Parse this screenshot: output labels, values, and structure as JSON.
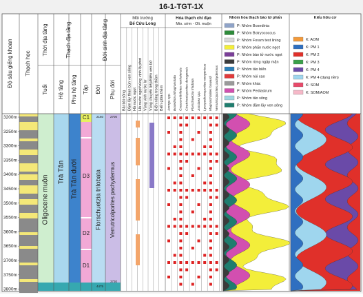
{
  "title": "16-1-TGT-1X",
  "columns": {
    "depth": "Độ sâu giếng khoan",
    "lithology": "Thạch học",
    "chrono": "Thời địa tầng",
    "age": "Tuổi",
    "litho": "Thạch địa tầng",
    "formation": "Hệ tầng",
    "subformation": "Phụ hệ tầng",
    "set": "Tập",
    "bio": "Đới sinh địa tầng",
    "zone": "Đới",
    "subzone": "Phụ đới"
  },
  "environment": {
    "title": "Môi trường",
    "basin": "Bể Cửu Long",
    "labels": [
      "Bãi bồi sông",
      "Đầm lầy than bùn ven sông",
      "Hồ nước ngọt",
      "Hồ nước ngọt/vùng vịnh lộ phơi",
      "Vùng vịnh nước lợ",
      "Vùng chuyển tiếp/Biển ven bờ",
      "Biển nông trong thềm",
      "Biển giữa thềm"
    ]
  },
  "fossils": {
    "title": "Hóa thạch chỉ đạo",
    "period": "Mio. sớm - Oli. muộn",
    "species": [
      "Arenga spp.",
      "Bosedinia infragranulata",
      "Crassoretitriletes nanhaiensis",
      "Cicatricosisporites dorogensis",
      "Florschuetzia trilobata",
      "Jussiaea spp.",
      "Lycopodiumsporites neogenicus",
      "Magnastriatites howardi",
      "Verrutricolporites pachydermus"
    ]
  },
  "pollen": {
    "title": "Nhóm hóa thạch bào tử phấn",
    "legend": [
      {
        "label": "P: Nhóm Bosedinia",
        "color": "#8fa3c8"
      },
      {
        "label": "P: Nhóm Botryococcus",
        "color": "#2e8b3a"
      },
      {
        "label": "P: Nhóm Foram test lining",
        "color": "#d8d8d8"
      },
      {
        "label": "P: Nhóm phấn nước ngọt",
        "color": "#f3ee3a"
      },
      {
        "label": "P: Nhóm bào tử nước ngọt",
        "color": "#7a3f98"
      },
      {
        "label": "P: Nhóm rừng ngập mặn",
        "color": "#3b3b3b"
      },
      {
        "label": "P: Nhóm tảo biển",
        "color": "#2d7fb8"
      },
      {
        "label": "P: Nhóm núi cao",
        "color": "#e03a3a"
      },
      {
        "label": "P: Nhóm khác",
        "color": "#9a9a9a"
      },
      {
        "label": "P: Nhóm Pediastrum",
        "color": "#d24fb0"
      },
      {
        "label": "P: Nhóm tảo sông",
        "color": "#9fd6e0"
      },
      {
        "label": "P: Nhóm đầm lầy ven sông",
        "color": "#1f7d6e"
      }
    ]
  },
  "kerogen": {
    "title": "Kiểu hữu cơ",
    "legend": [
      {
        "label": "K: AOM",
        "color": "#f39a3a"
      },
      {
        "label": "K: PM 1",
        "color": "#2f6fc0"
      },
      {
        "label": "K: PM 2",
        "color": "#e0302a"
      },
      {
        "label": "K: PM 3",
        "color": "#3aa04a"
      },
      {
        "label": "K: PM 4",
        "color": "#6a4aa8"
      },
      {
        "label": "K: PM 4 (dạng nền)",
        "color": "#9fd6ee"
      },
      {
        "label": "K: SOM",
        "color": "#e84a6a"
      },
      {
        "label": "K: SOM/AOM",
        "color": "#f6b8c8"
      }
    ]
  },
  "depths": [
    "3200m",
    "3250m",
    "3300m",
    "3350m",
    "3400m",
    "3450m",
    "3500m",
    "3550m",
    "3600m",
    "3650m",
    "3700m",
    "3750m",
    "3800m"
  ],
  "units": {
    "age": "Oligocene muộn",
    "formation": "Trà Tân",
    "subformation": "Trà Tân dưới",
    "sets": [
      "C1",
      "D3",
      "D2",
      "D1"
    ],
    "zone": "Florschuetzia trilobata",
    "subzone": "Verrutricolporites pachydermus"
  },
  "small_labels": {
    "zone_top": "2160",
    "subzone_top": "2700",
    "zone_bottom": "4475",
    "subzone_bottom": "3730"
  }
}
